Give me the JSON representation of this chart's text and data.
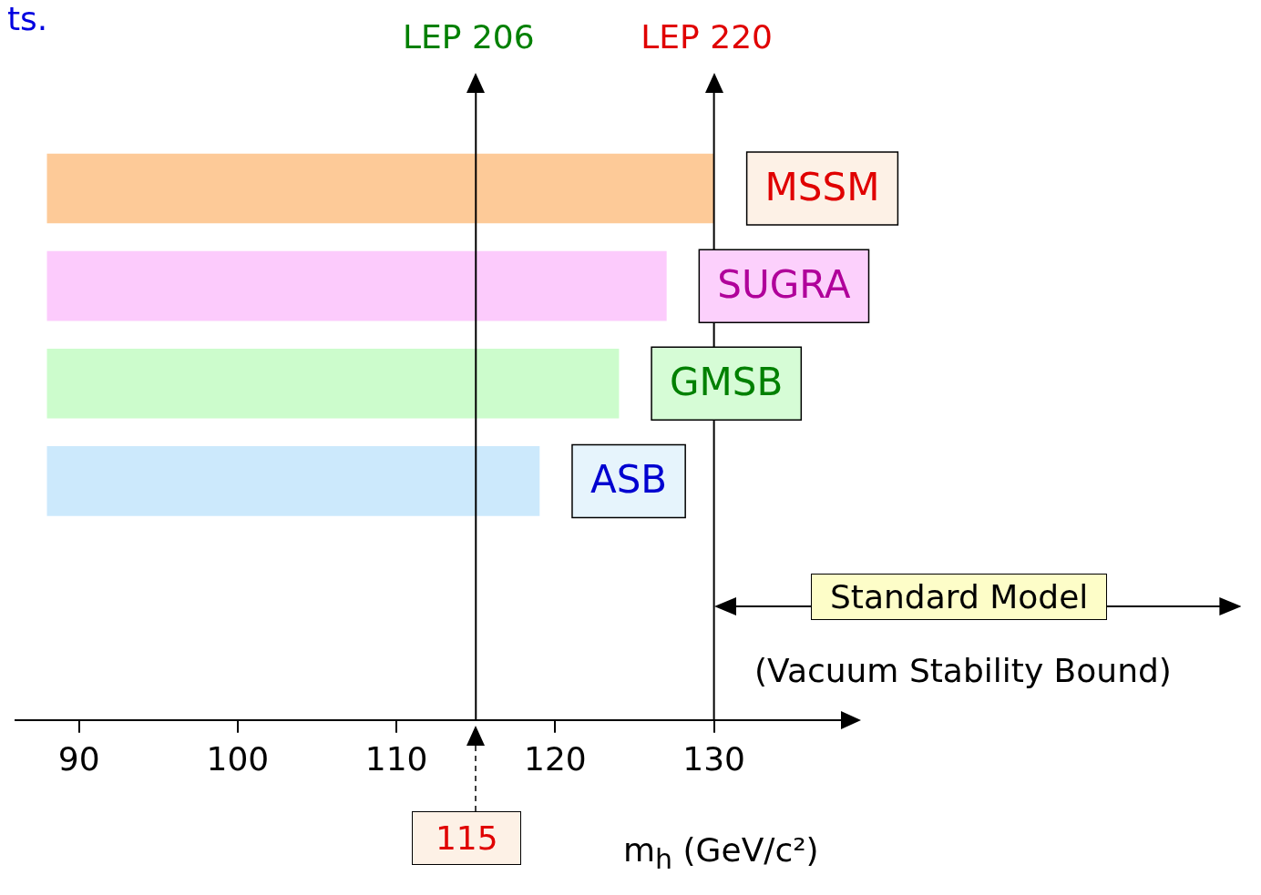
{
  "chart_data": {
    "type": "bar",
    "orientation": "horizontal",
    "xlabel": "m$_{h}$ (GeV/c²)",
    "categories": [
      "MSSM",
      "SUGRA",
      "GMSB",
      "ASB"
    ],
    "base": [
      88,
      88,
      88,
      88
    ],
    "values": [
      42,
      39,
      36,
      31
    ],
    "colors": [
      "#fdca98",
      "#fccbfc",
      "#ccfccc",
      "#cce9fc"
    ],
    "xlim": [
      86,
      138
    ],
    "xticks": [
      90,
      100,
      110,
      120,
      130
    ],
    "tick_labels": "x",
    "grid": false,
    "legend": false,
    "ref_lines": [
      {
        "axis": "x",
        "value": 115,
        "label": "LEP 206",
        "color": "#000000"
      },
      {
        "axis": "x",
        "value": 130,
        "label": "LEP 220",
        "color": "#000000"
      }
    ],
    "annotations": [
      "ts.",
      "115",
      "Standard Model",
      "(Vacuum Stability Bound)"
    ]
  }
}
